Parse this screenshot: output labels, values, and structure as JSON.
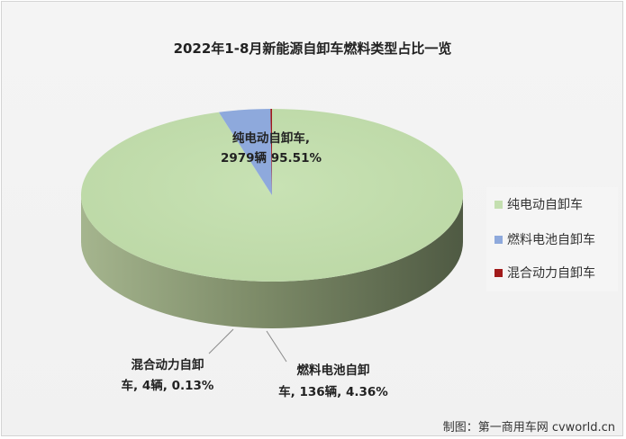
{
  "chart_data": {
    "type": "pie",
    "title": "2022年1-8月新能源自卸车燃料类型占比一览",
    "series": [
      {
        "name": "纯电动自卸车",
        "count": 2979,
        "percent": 95.51,
        "color": "#c4dfb0",
        "label_lines": [
          "纯电动自卸车,",
          "2979辆 95.51%"
        ]
      },
      {
        "name": "燃料电池自卸车",
        "count": 136,
        "percent": 4.36,
        "color": "#8ea9dc",
        "label_lines": [
          "燃料电池自卸",
          "车, 136辆, 4.36%"
        ]
      },
      {
        "name": "混合动力自卸车",
        "count": 4,
        "percent": 0.13,
        "color": "#a11a1a",
        "label_lines": [
          "混合动力自卸",
          "车, 4辆, 0.13%"
        ]
      }
    ],
    "legend_position": "right"
  },
  "credit": "制图：第一商用车网 cvworld.cn"
}
